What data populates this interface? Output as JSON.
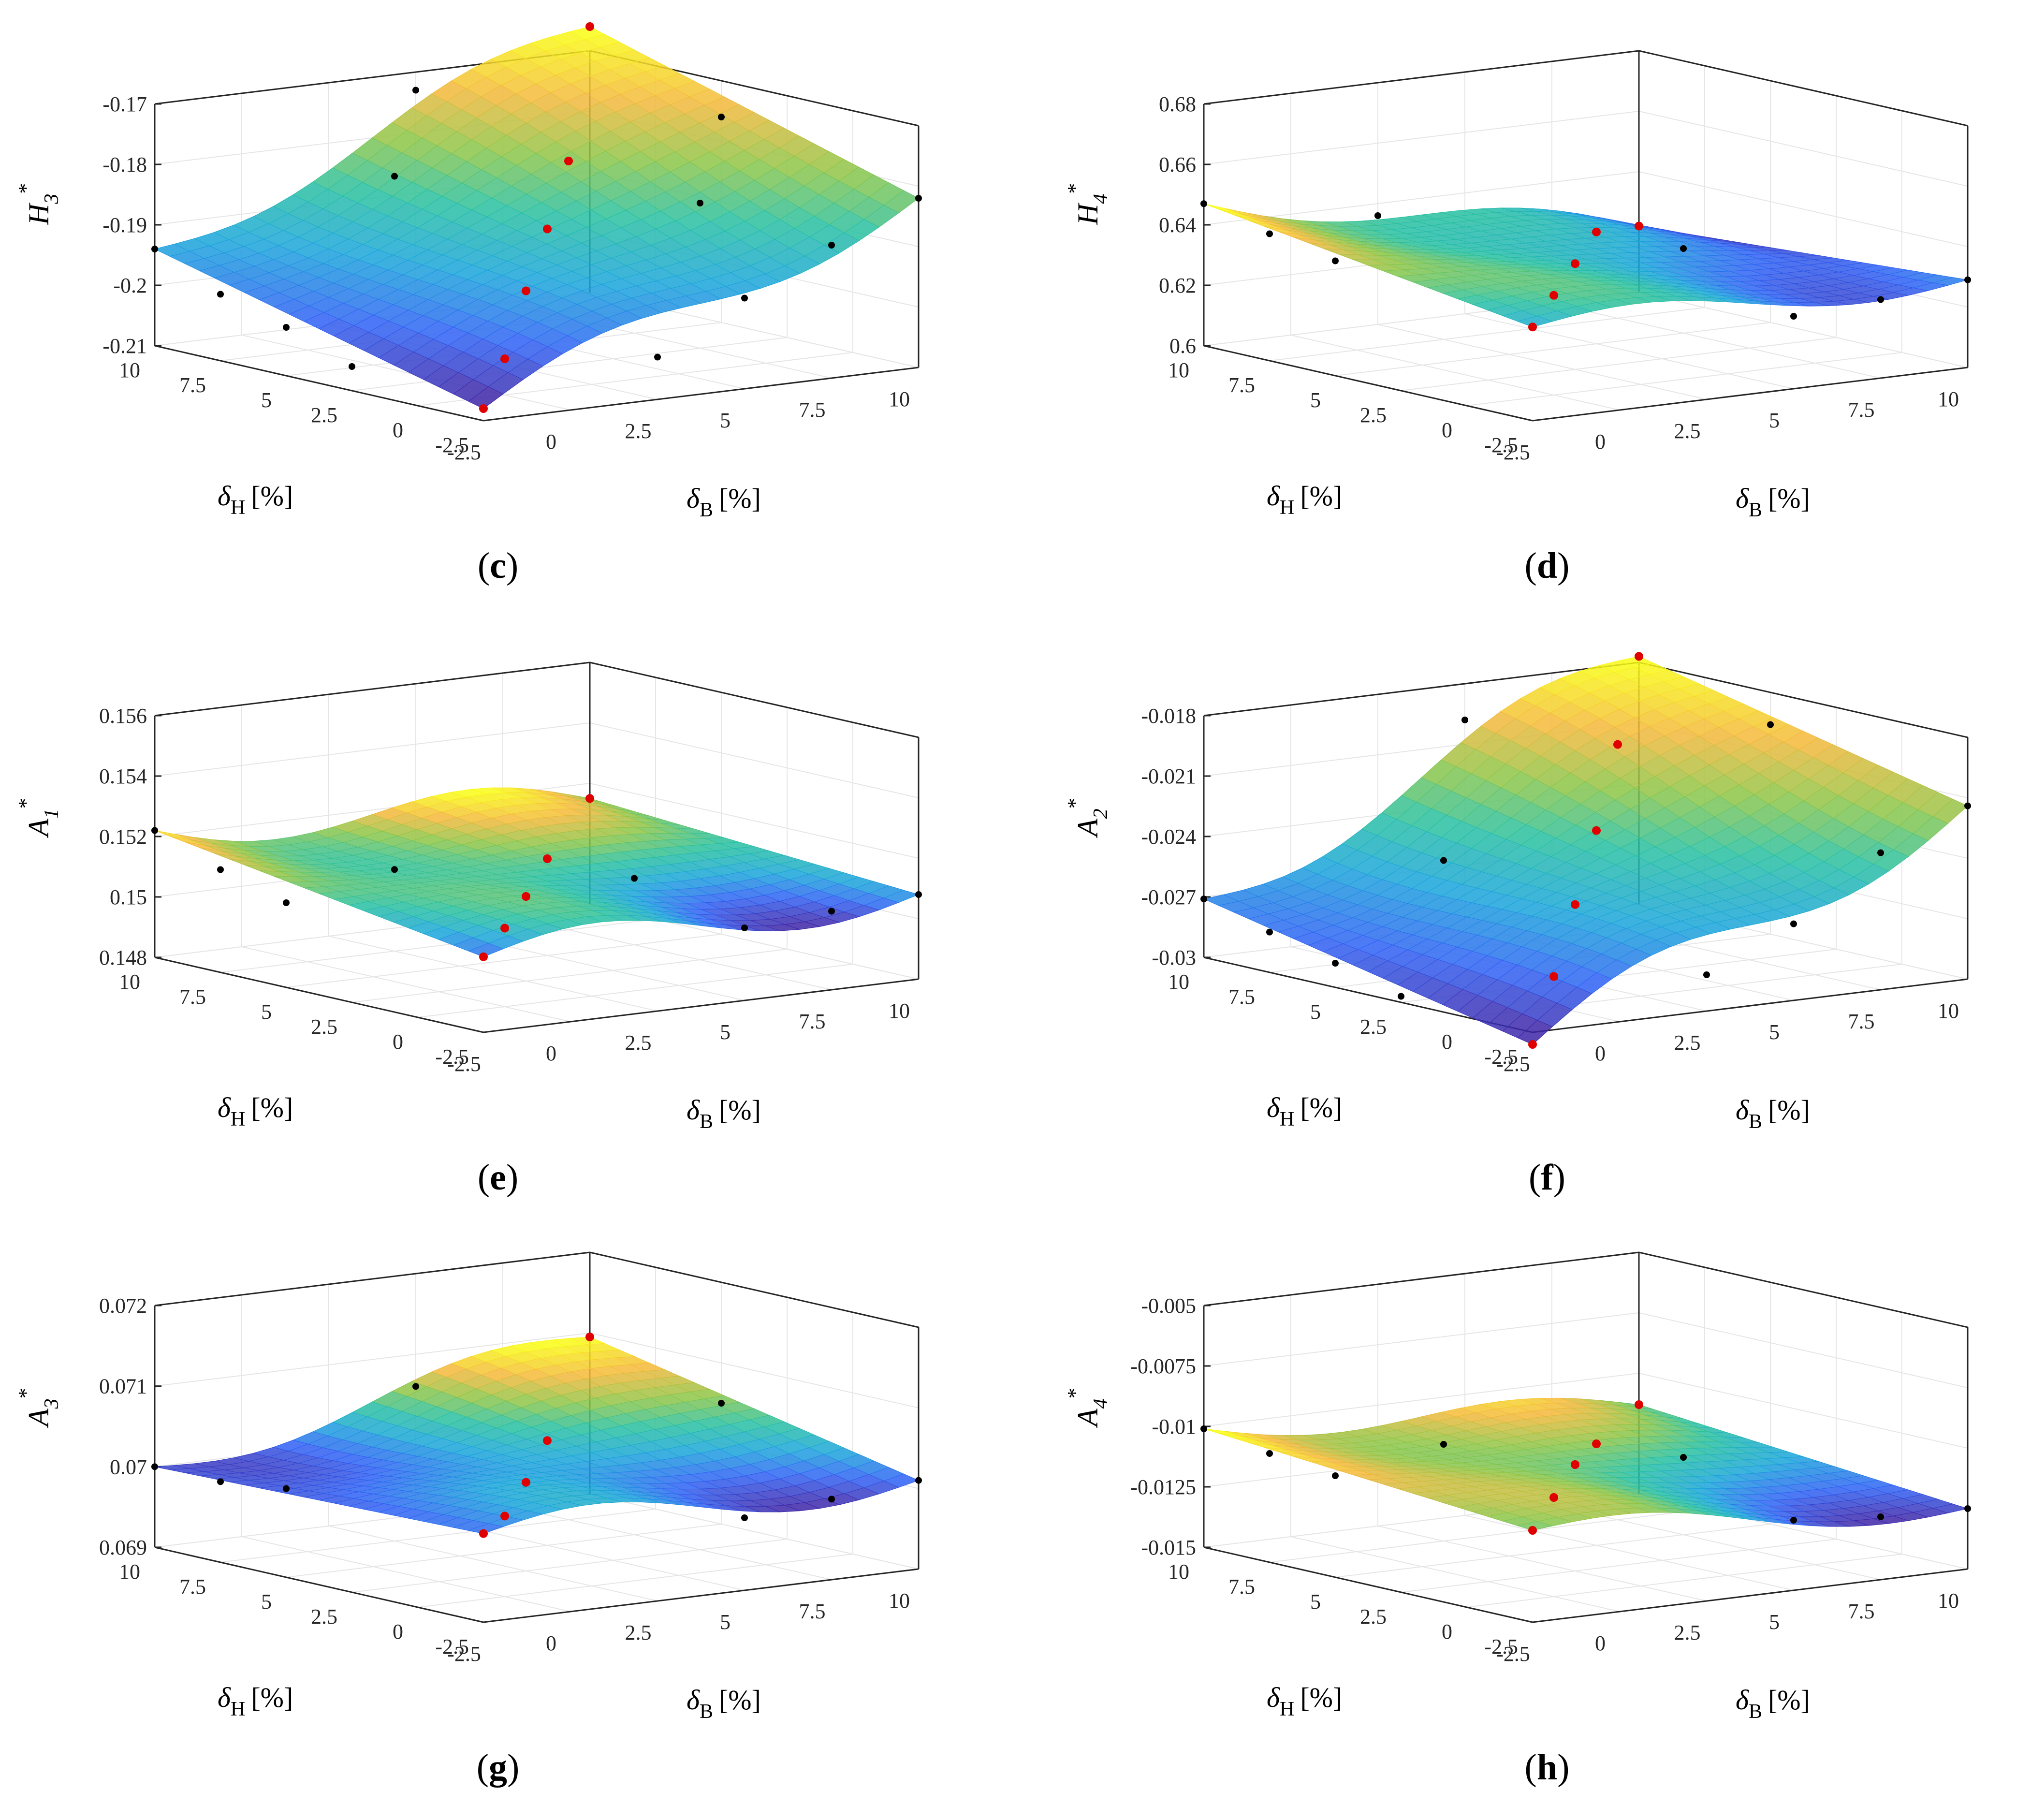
{
  "figure": {
    "colors": {
      "axis": "#262626",
      "grid": "#e6e6e6",
      "marker_black": "#000000",
      "marker_red": "#e00000",
      "colormap": [
        "#3e26a8",
        "#2f61f4",
        "#1aa5da",
        "#28c0a0",
        "#8dc546",
        "#f4b83a",
        "#f9fb15"
      ]
    },
    "symbols": {
      "star": "*",
      "percent_unit": "[%]"
    }
  },
  "chart_data": [
    {
      "id": "c",
      "type": "surface3d",
      "caption_open": "(",
      "caption_letter": "c",
      "caption_close": ")",
      "zlabel_main": "H",
      "zlabel_sub": "3",
      "xlabel_main": "δ",
      "xlabel_sub": "B",
      "ylabel_main": "δ",
      "ylabel_sub": "H",
      "xticks": [
        "-2.5",
        "0",
        "2.5",
        "5",
        "7.5",
        "10"
      ],
      "yticks": [
        "-2.5",
        "0",
        "2.5",
        "5",
        "7.5",
        "10"
      ],
      "zticks": [
        "-0.21",
        "-0.2",
        "-0.19",
        "-0.18",
        "-0.17"
      ],
      "xlim": [
        -2.5,
        10
      ],
      "ylim": [
        -2.5,
        10
      ],
      "zlim": [
        -0.21,
        -0.17
      ],
      "corners": {
        "x_min_y_min": -0.208,
        "x_max_y_min": -0.182,
        "x_min_y_max": -0.194,
        "x_max_y_max": -0.166
      },
      "wave": 0.003,
      "points": [
        [
          -2.5,
          -2.5,
          -0.208,
          "red"
        ],
        [
          0,
          0,
          -0.204,
          "red"
        ],
        [
          2.5,
          2.5,
          -0.197,
          "red"
        ],
        [
          5,
          5,
          -0.191,
          "red"
        ],
        [
          7.5,
          7.5,
          -0.184,
          "red"
        ],
        [
          10,
          10,
          -0.166,
          "red"
        ],
        [
          2.5,
          -2.5,
          -0.203,
          "black"
        ],
        [
          5,
          -2.5,
          -0.195,
          "black"
        ],
        [
          7.5,
          -2.5,
          -0.188,
          "black"
        ],
        [
          10,
          -2.5,
          -0.182,
          "black"
        ],
        [
          -2.5,
          2.5,
          -0.206,
          "black"
        ],
        [
          -2.5,
          5,
          -0.202,
          "black"
        ],
        [
          -2.5,
          7.5,
          -0.199,
          "black"
        ],
        [
          -2.5,
          10,
          -0.194,
          "black"
        ],
        [
          5,
          10,
          -0.173,
          "black"
        ],
        [
          10,
          5,
          -0.176,
          "black"
        ],
        [
          7.5,
          2.5,
          -0.186,
          "black"
        ],
        [
          2.5,
          7.5,
          -0.183,
          "black"
        ]
      ]
    },
    {
      "id": "d",
      "type": "surface3d",
      "caption_open": "(",
      "caption_letter": "d",
      "caption_close": ")",
      "zlabel_main": "H",
      "zlabel_sub": "4",
      "xlabel_main": "δ",
      "xlabel_sub": "B",
      "ylabel_main": "δ",
      "ylabel_sub": "H",
      "xticks": [
        "-2.5",
        "0",
        "2.5",
        "5",
        "7.5",
        "10"
      ],
      "yticks": [
        "-2.5",
        "0",
        "2.5",
        "5",
        "7.5",
        "10"
      ],
      "zticks": [
        "0.6",
        "0.62",
        "0.64",
        "0.66",
        "0.68"
      ],
      "xlim": [
        -2.5,
        10
      ],
      "ylim": [
        -2.5,
        10
      ],
      "zlim": [
        0.6,
        0.68
      ],
      "corners": {
        "x_min_y_min": 0.631,
        "x_max_y_min": 0.629,
        "x_min_y_max": 0.647,
        "x_max_y_max": 0.622
      },
      "wave": 0.004,
      "points": [
        [
          -2.5,
          -2.5,
          0.631,
          "red"
        ],
        [
          0,
          0,
          0.633,
          "red"
        ],
        [
          2.5,
          2.5,
          0.635,
          "red"
        ],
        [
          5,
          5,
          0.637,
          "red"
        ],
        [
          10,
          10,
          0.622,
          "red"
        ],
        [
          10,
          -2.5,
          0.629,
          "black"
        ],
        [
          7.5,
          -2.5,
          0.626,
          "black"
        ],
        [
          5,
          -2.5,
          0.624,
          "black"
        ],
        [
          -2.5,
          10,
          0.647,
          "black"
        ],
        [
          -2.5,
          7.5,
          0.642,
          "black"
        ],
        [
          -2.5,
          5,
          0.638,
          "black"
        ],
        [
          2.5,
          10,
          0.636,
          "black"
        ],
        [
          7.5,
          5,
          0.628,
          "black"
        ]
      ]
    },
    {
      "id": "e",
      "type": "surface3d",
      "caption_open": "(",
      "caption_letter": "e",
      "caption_close": ")",
      "zlabel_main": "A",
      "zlabel_sub": "1",
      "xlabel_main": "δ",
      "xlabel_sub": "B",
      "ylabel_main": "δ",
      "ylabel_sub": "H",
      "xticks": [
        "-2.5",
        "0",
        "2.5",
        "5",
        "7.5",
        "10"
      ],
      "yticks": [
        "-2.5",
        "0",
        "2.5",
        "5",
        "7.5",
        "10"
      ],
      "zticks": [
        "0.148",
        "0.15",
        "0.152",
        "0.154",
        "0.156"
      ],
      "xlim": [
        -2.5,
        10
      ],
      "ylim": [
        -2.5,
        10
      ],
      "zlim": [
        0.148,
        0.156
      ],
      "corners": {
        "x_min_y_min": 0.1505,
        "x_max_y_min": 0.1508,
        "x_min_y_max": 0.1522,
        "x_max_y_max": 0.1515
      },
      "wave": 0.0006,
      "points": [
        [
          -2.5,
          -2.5,
          0.1505,
          "red"
        ],
        [
          0,
          0,
          0.1506,
          "red"
        ],
        [
          2.5,
          2.5,
          0.1508,
          "red"
        ],
        [
          5,
          5,
          0.1512,
          "red"
        ],
        [
          10,
          10,
          0.1515,
          "red"
        ],
        [
          10,
          -2.5,
          0.1508,
          "black"
        ],
        [
          7.5,
          -2.5,
          0.1506,
          "black"
        ],
        [
          5,
          -2.5,
          0.1504,
          "black"
        ],
        [
          -2.5,
          10,
          0.1522,
          "black"
        ],
        [
          -2.5,
          7.5,
          0.1514,
          "black"
        ],
        [
          -2.5,
          5,
          0.1508,
          "black"
        ],
        [
          7.5,
          5,
          0.1502,
          "black"
        ],
        [
          2.5,
          7.5,
          0.1507,
          "black"
        ]
      ]
    },
    {
      "id": "f",
      "type": "surface3d",
      "caption_open": "(",
      "caption_letter": "f",
      "caption_close": ")",
      "zlabel_main": "A",
      "zlabel_sub": "2",
      "xlabel_main": "δ",
      "xlabel_sub": "B",
      "ylabel_main": "δ",
      "ylabel_sub": "H",
      "xticks": [
        "-2.5",
        "0",
        "2.5",
        "5",
        "7.5",
        "10"
      ],
      "yticks": [
        "-2.5",
        "0",
        "2.5",
        "5",
        "7.5",
        "10"
      ],
      "zticks": [
        "-0.03",
        "-0.027",
        "-0.024",
        "-0.021",
        "-0.018"
      ],
      "xlim": [
        -2.5,
        10
      ],
      "ylim": [
        -2.5,
        10
      ],
      "zlim": [
        -0.03,
        -0.018
      ],
      "corners": {
        "x_min_y_min": -0.0306,
        "x_max_y_min": -0.0214,
        "x_min_y_max": -0.0271,
        "x_max_y_max": -0.0177
      },
      "wave": 0.0012,
      "points": [
        [
          -2.5,
          -2.5,
          -0.0306,
          "red"
        ],
        [
          0,
          0,
          -0.0285,
          "red"
        ],
        [
          2.5,
          2.5,
          -0.0262,
          "red"
        ],
        [
          5,
          5,
          -0.0238,
          "red"
        ],
        [
          7.5,
          7.5,
          -0.0208,
          "red"
        ],
        [
          10,
          10,
          -0.0177,
          "red"
        ],
        [
          2.5,
          -2.5,
          -0.0282,
          "black"
        ],
        [
          5,
          -2.5,
          -0.0262,
          "black"
        ],
        [
          7.5,
          -2.5,
          -0.0232,
          "black"
        ],
        [
          10,
          -2.5,
          -0.0214,
          "black"
        ],
        [
          -2.5,
          2.5,
          -0.0297,
          "black"
        ],
        [
          -2.5,
          5,
          -0.0288,
          "black"
        ],
        [
          -2.5,
          7.5,
          -0.028,
          "black"
        ],
        [
          -2.5,
          10,
          -0.0271,
          "black"
        ],
        [
          5,
          10,
          -0.0198,
          "black"
        ],
        [
          10,
          5,
          -0.0196,
          "black"
        ],
        [
          2.5,
          7.5,
          -0.0255,
          "black"
        ]
      ]
    },
    {
      "id": "g",
      "type": "surface3d",
      "caption_open": "(",
      "caption_letter": "g",
      "caption_close": ")",
      "zlabel_main": "A",
      "zlabel_sub": "3",
      "xlabel_main": "δ",
      "xlabel_sub": "B",
      "ylabel_main": "δ",
      "ylabel_sub": "H",
      "xticks": [
        "-2.5",
        "0",
        "2.5",
        "5",
        "7.5",
        "10"
      ],
      "yticks": [
        "-2.5",
        "0",
        "2.5",
        "5",
        "7.5",
        "10"
      ],
      "zticks": [
        "0.069",
        "0.07",
        "0.071",
        "0.072"
      ],
      "xlim": [
        -2.5,
        10
      ],
      "ylim": [
        -2.5,
        10
      ],
      "zlim": [
        0.069,
        0.072
      ],
      "corners": {
        "x_min_y_min": 0.0701,
        "x_max_y_min": 0.0701,
        "x_min_y_max": 0.07,
        "x_max_y_max": 0.07095
      },
      "wave": 0.0002,
      "points": [
        [
          -2.5,
          -2.5,
          0.0701,
          "red"
        ],
        [
          0,
          0,
          0.07,
          "red"
        ],
        [
          2.5,
          2.5,
          0.0701,
          "red"
        ],
        [
          5,
          5,
          0.0703,
          "red"
        ],
        [
          10,
          10,
          0.07095,
          "red"
        ],
        [
          10,
          -2.5,
          0.0701,
          "black"
        ],
        [
          7.5,
          -2.5,
          0.07,
          "black"
        ],
        [
          5,
          -2.5,
          0.0699,
          "black"
        ],
        [
          -2.5,
          10,
          0.07,
          "black"
        ],
        [
          -2.5,
          7.5,
          0.07,
          "black"
        ],
        [
          -2.5,
          5,
          0.0701,
          "black"
        ],
        [
          5,
          10,
          0.0706,
          "black"
        ],
        [
          10,
          5,
          0.0705,
          "black"
        ]
      ]
    },
    {
      "id": "h",
      "type": "surface3d",
      "caption_open": "(",
      "caption_letter": "h",
      "caption_close": ")",
      "zlabel_main": "A",
      "zlabel_sub": "4",
      "xlabel_main": "δ",
      "xlabel_sub": "B",
      "ylabel_main": "δ",
      "ylabel_sub": "H",
      "xticks": [
        "-2.5",
        "0",
        "2.5",
        "5",
        "7.5",
        "10"
      ],
      "yticks": [
        "-2.5",
        "0",
        "2.5",
        "5",
        "7.5",
        "10"
      ],
      "zticks": [
        "-0.015",
        "-0.0125",
        "-0.01",
        "-0.0075",
        "-0.005"
      ],
      "xlim": [
        -2.5,
        10
      ],
      "ylim": [
        -2.5,
        10
      ],
      "zlim": [
        -0.015,
        -0.005
      ],
      "corners": {
        "x_min_y_min": -0.0112,
        "x_max_y_min": -0.0125,
        "x_min_y_max": -0.0101,
        "x_max_y_max": -0.0113
      },
      "wave": 0.0005,
      "points": [
        [
          -2.5,
          -2.5,
          -0.0112,
          "red"
        ],
        [
          0,
          0,
          -0.0109,
          "red"
        ],
        [
          2.5,
          2.5,
          -0.0106,
          "red"
        ],
        [
          5,
          5,
          -0.0108,
          "red"
        ],
        [
          10,
          10,
          -0.0113,
          "red"
        ],
        [
          10,
          -2.5,
          -0.0125,
          "black"
        ],
        [
          7.5,
          -2.5,
          -0.0124,
          "black"
        ],
        [
          5,
          -2.5,
          -0.0121,
          "black"
        ],
        [
          -2.5,
          10,
          -0.0101,
          "black"
        ],
        [
          -2.5,
          7.5,
          -0.0105,
          "black"
        ],
        [
          -2.5,
          5,
          -0.0108,
          "black"
        ],
        [
          7.5,
          5,
          -0.0118,
          "black"
        ],
        [
          2.5,
          7.5,
          -0.011,
          "black"
        ]
      ]
    }
  ]
}
